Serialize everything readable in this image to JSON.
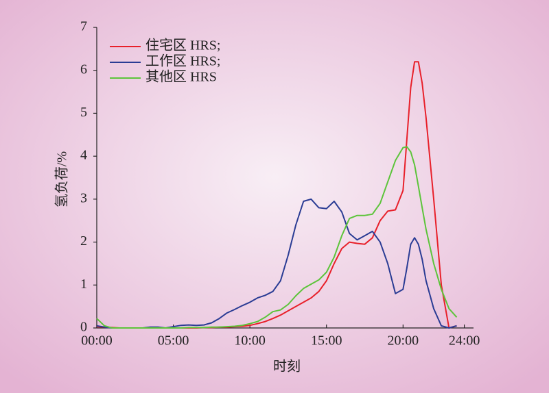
{
  "chart_data": {
    "type": "line",
    "xlabel": "时刻",
    "ylabel": "氢负荷/%",
    "x": [
      0,
      0.5,
      1,
      1.5,
      2,
      2.5,
      3,
      3.5,
      4,
      4.5,
      5,
      5.5,
      6,
      6.5,
      7,
      7.5,
      8,
      8.5,
      9,
      9.5,
      10,
      10.5,
      11,
      11.5,
      12,
      12.5,
      13,
      13.5,
      14,
      14.5,
      15,
      15.5,
      16,
      16.5,
      17,
      17.5,
      18,
      18.5,
      19,
      19.5,
      20,
      20.25,
      20.5,
      20.75,
      21,
      21.25,
      21.5,
      22,
      22.5,
      23,
      23.5
    ],
    "series": [
      {
        "name": "住宅区 HRS;",
        "color": "#e8202a",
        "values": [
          0.03,
          0.02,
          0.01,
          0,
          0,
          0,
          0,
          0,
          0,
          0,
          0,
          0,
          0,
          0,
          0.01,
          0.01,
          0.02,
          0.02,
          0.03,
          0.04,
          0.06,
          0.1,
          0.15,
          0.22,
          0.3,
          0.4,
          0.5,
          0.6,
          0.7,
          0.85,
          1.1,
          1.5,
          1.85,
          2.0,
          1.97,
          1.95,
          2.1,
          2.5,
          2.72,
          2.75,
          3.2,
          4.4,
          5.6,
          6.2,
          6.2,
          5.7,
          4.9,
          3.0,
          1.0,
          0,
          0.05
        ]
      },
      {
        "name": "工作区 HRS;",
        "color": "#2a3c94",
        "values": [
          0.05,
          0.02,
          0,
          0,
          0,
          0,
          0,
          0.02,
          0.02,
          0,
          0.03,
          0.06,
          0.07,
          0.06,
          0.07,
          0.12,
          0.22,
          0.35,
          0.43,
          0.52,
          0.6,
          0.7,
          0.76,
          0.85,
          1.1,
          1.7,
          2.4,
          2.95,
          3.0,
          2.8,
          2.78,
          2.95,
          2.7,
          2.2,
          2.05,
          2.15,
          2.25,
          2.0,
          1.5,
          0.8,
          0.9,
          1.4,
          1.95,
          2.1,
          1.95,
          1.6,
          1.1,
          0.45,
          0.05,
          0,
          0.05
        ]
      },
      {
        "name": "其他区 HRS",
        "color": "#5cc43a",
        "values": [
          0.22,
          0.05,
          0,
          0,
          0,
          0,
          0,
          0,
          0,
          0,
          0,
          0,
          0.01,
          0.01,
          0.01,
          0.02,
          0.02,
          0.03,
          0.04,
          0.06,
          0.1,
          0.15,
          0.25,
          0.38,
          0.42,
          0.55,
          0.75,
          0.92,
          1.02,
          1.12,
          1.3,
          1.65,
          2.15,
          2.55,
          2.62,
          2.62,
          2.65,
          2.9,
          3.4,
          3.9,
          4.2,
          4.22,
          4.1,
          3.8,
          3.3,
          2.8,
          2.3,
          1.5,
          0.9,
          0.45,
          0.25
        ]
      }
    ],
    "xlim": [
      0,
      24.6
    ],
    "xticks": [
      {
        "value": 0,
        "label": "00:00"
      },
      {
        "value": 5,
        "label": "05:00"
      },
      {
        "value": 10,
        "label": "10:00"
      },
      {
        "value": 15,
        "label": "15:00"
      },
      {
        "value": 20,
        "label": "20:00"
      },
      {
        "value": 24,
        "label": "24:00"
      }
    ],
    "ylim": [
      0,
      7
    ],
    "yticks": [
      0,
      1,
      2,
      3,
      4,
      5,
      6,
      7
    ],
    "legend": "upper left"
  }
}
